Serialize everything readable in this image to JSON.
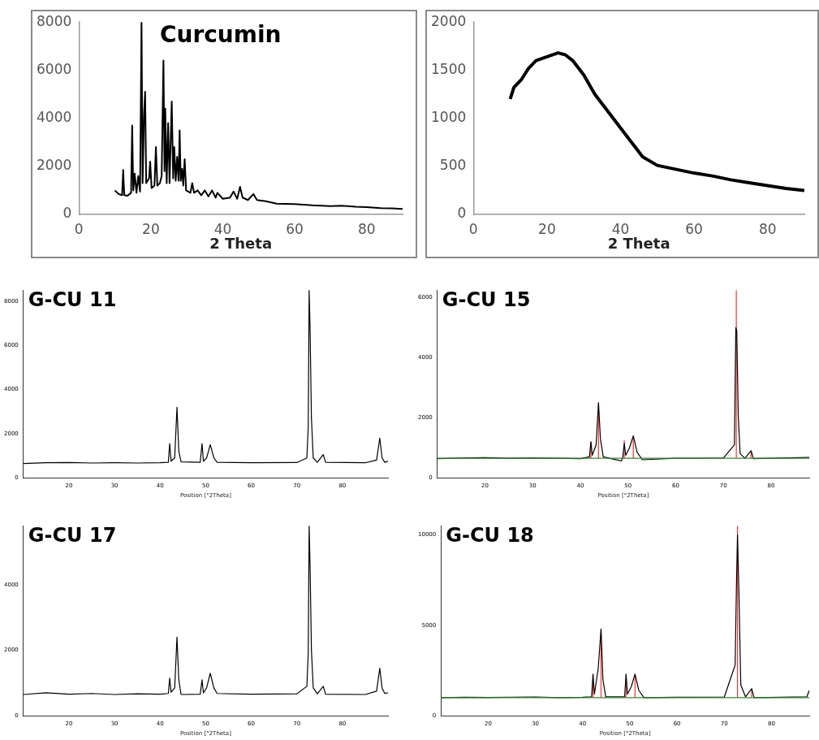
{
  "chart_data": [
    {
      "type": "line",
      "title": "Curcumin",
      "xlabel": "2 Theta",
      "xlim": [
        0,
        90
      ],
      "xticks": [
        0,
        20,
        40,
        60,
        80
      ],
      "ylim": [
        0,
        8000
      ],
      "yticks": [
        0,
        2000,
        4000,
        6000,
        8000
      ],
      "grid": false,
      "legend": false,
      "marker": "none",
      "series": [
        {
          "color": "#000000",
          "x": [
            10,
            11,
            12,
            12.3,
            12.6,
            13.5,
            14.5,
            14.8,
            15.1,
            15.5,
            16,
            16.5,
            17,
            17.4,
            17.7,
            18.1,
            18.4,
            18.7,
            19.5,
            19.8,
            20.2,
            21,
            21.4,
            21.8,
            22.5,
            23,
            23.5,
            23.8,
            24,
            24.4,
            24.8,
            25.2,
            25.8,
            26.2,
            26.5,
            26.9,
            27.3,
            27.7,
            28,
            28.3,
            28.7,
            29,
            29.4,
            29.8,
            31,
            31.5,
            32,
            33,
            34,
            35,
            36,
            37,
            38,
            38.5,
            40,
            42,
            43,
            44,
            44.8,
            45.5,
            47,
            48.5,
            49.5,
            52,
            55,
            60,
            65,
            70,
            73,
            77,
            80,
            84,
            87,
            90
          ],
          "values": [
            1000,
            850,
            800,
            1850,
            800,
            780,
            900,
            3700,
            1000,
            1700,
            900,
            1600,
            950,
            8000,
            1300,
            4200,
            5100,
            1300,
            1500,
            2200,
            1100,
            1200,
            2800,
            1200,
            1300,
            1600,
            6400,
            1800,
            4400,
            1300,
            3800,
            1300,
            4700,
            1500,
            2800,
            1400,
            2400,
            1400,
            3500,
            1400,
            1900,
            1200,
            2300,
            1000,
            900,
            1300,
            900,
            1000,
            800,
            1000,
            750,
            1000,
            700,
            900,
            650,
            700,
            950,
            650,
            1150,
            700,
            600,
            850,
            600,
            550,
            450,
            430,
            380,
            350,
            360,
            320,
            300,
            260,
            250,
            230
          ]
        }
      ]
    },
    {
      "type": "line",
      "xlabel": "2 Theta",
      "xlim": [
        0,
        90
      ],
      "xticks": [
        0,
        20,
        40,
        60,
        80
      ],
      "ylim": [
        0,
        2000
      ],
      "yticks": [
        0,
        500,
        1000,
        1500,
        2000
      ],
      "grid": false,
      "legend": false,
      "marker": "none",
      "series": [
        {
          "color": "#000000",
          "x": [
            10,
            11,
            13,
            15,
            17,
            20,
            23,
            25,
            27,
            30,
            33,
            36,
            40,
            43,
            46,
            50,
            55,
            60,
            65,
            70,
            75,
            80,
            85,
            90
          ],
          "values": [
            1200,
            1320,
            1400,
            1520,
            1600,
            1640,
            1680,
            1660,
            1600,
            1450,
            1250,
            1100,
            900,
            750,
            600,
            510,
            470,
            430,
            400,
            360,
            330,
            300,
            270,
            250
          ]
        }
      ]
    },
    {
      "type": "line",
      "title": "G-CU 11",
      "xlabel": "Position [°2Theta]",
      "xlim": [
        10,
        90
      ],
      "xticks": [
        20,
        30,
        40,
        50,
        60,
        70,
        80
      ],
      "ylim": [
        0,
        8500
      ],
      "yticks": [
        0,
        2000,
        4000,
        6000,
        8000
      ],
      "grid": false,
      "legend": false,
      "marker": "none",
      "series": [
        {
          "color": "#000000",
          "x": [
            10,
            15,
            20,
            25,
            30,
            35,
            40,
            41.8,
            42.1,
            42.4,
            43.2,
            43.7,
            44.1,
            44.6,
            48.8,
            49.2,
            49.5,
            50.2,
            51,
            51.8,
            52.5,
            60,
            70,
            72.2,
            72.5,
            72.7,
            72.9,
            73.2,
            73.6,
            74.5,
            75.8,
            76.3,
            85,
            87.5,
            88.2,
            88.7,
            89.3,
            90
          ],
          "values": [
            650,
            680,
            690,
            670,
            680,
            670,
            680,
            700,
            1550,
            750,
            900,
            3200,
            1200,
            720,
            700,
            1550,
            750,
            900,
            1500,
            900,
            700,
            680,
            690,
            900,
            2300,
            8500,
            6800,
            2700,
            900,
            700,
            1050,
            700,
            680,
            800,
            1800,
            900,
            700,
            750
          ]
        }
      ]
    },
    {
      "type": "line",
      "title": "G-CU 15",
      "xlabel": "Position [°2Theta]",
      "xlim": [
        10,
        88
      ],
      "xticks": [
        20,
        30,
        40,
        50,
        60,
        70,
        80
      ],
      "ylim": [
        0,
        6250
      ],
      "yticks": [
        0,
        2000,
        4000,
        6000
      ],
      "grid": false,
      "legend": false,
      "marker": "none",
      "series": [
        {
          "color": "#2e8b2e",
          "x": [
            10,
            88
          ],
          "values": [
            650,
            650
          ]
        },
        {
          "color": "#000000",
          "x": [
            10,
            15,
            20,
            25,
            30,
            35,
            40,
            41.9,
            42.2,
            42.5,
            43.3,
            43.8,
            44.2,
            44.8,
            48.6,
            48.9,
            49.2,
            49.5,
            50.3,
            51.1,
            51.9,
            53,
            60,
            70,
            72.3,
            72.6,
            72.8,
            73.1,
            73.5,
            74.5,
            75.8,
            76.3,
            82,
            88
          ],
          "values": [
            640,
            660,
            670,
            650,
            660,
            650,
            640,
            700,
            1200,
            750,
            1100,
            2500,
            1300,
            700,
            560,
            700,
            1150,
            750,
            1000,
            1400,
            850,
            600,
            650,
            660,
            1100,
            5000,
            4900,
            2100,
            800,
            650,
            900,
            640,
            660,
            680
          ]
        },
        {
          "color": "#ff3030",
          "x": [
            42.2,
            42.2,
            null,
            43.8,
            43.8,
            null,
            49.2,
            49.2,
            null,
            51.1,
            51.1,
            null,
            72.7,
            72.7,
            null,
            75.8,
            75.8
          ],
          "values": [
            650,
            1200,
            null,
            650,
            2500,
            null,
            650,
            1250,
            null,
            650,
            1350,
            null,
            650,
            6250,
            null,
            650,
            900
          ]
        }
      ]
    },
    {
      "type": "line",
      "title": "G-CU 17",
      "xlabel": "Position [°2Theta]",
      "xlim": [
        10,
        90
      ],
      "xticks": [
        20,
        30,
        40,
        50,
        60,
        70,
        80
      ],
      "ylim": [
        0,
        5800
      ],
      "yticks": [
        0,
        2000,
        4000
      ],
      "grid": false,
      "legend": false,
      "marker": "none",
      "series": [
        {
          "color": "#000000",
          "x": [
            10,
            15,
            20,
            25,
            30,
            35,
            40,
            41.8,
            42.1,
            42.4,
            43.2,
            43.7,
            44.1,
            44.6,
            48.8,
            49.2,
            49.5,
            50.2,
            51,
            51.8,
            52.5,
            60,
            70,
            72.2,
            72.5,
            72.7,
            72.9,
            73.2,
            73.6,
            74.5,
            75.8,
            76.3,
            85,
            87.5,
            88.2,
            88.7,
            89.3,
            90
          ],
          "values": [
            650,
            700,
            660,
            680,
            650,
            670,
            660,
            680,
            1150,
            720,
            850,
            2400,
            1100,
            650,
            660,
            1100,
            700,
            850,
            1300,
            850,
            680,
            660,
            670,
            900,
            1900,
            5800,
            4600,
            2000,
            850,
            670,
            900,
            660,
            650,
            750,
            1450,
            850,
            680,
            700
          ]
        }
      ]
    },
    {
      "type": "line",
      "title": "G-CU 18",
      "xlabel": "Position [°2Theta]",
      "xlim": [
        10,
        88
      ],
      "xticks": [
        20,
        30,
        40,
        50,
        60,
        70,
        80
      ],
      "ylim": [
        0,
        10500
      ],
      "yticks": [
        0,
        5000,
        10000
      ],
      "grid": false,
      "legend": false,
      "marker": "none",
      "series": [
        {
          "color": "#2e8b2e",
          "x": [
            10,
            88
          ],
          "values": [
            1000,
            1000
          ]
        },
        {
          "color": "#000000",
          "x": [
            10,
            15,
            20,
            25,
            30,
            35,
            40,
            41.9,
            42.2,
            42.5,
            43.3,
            43.9,
            44.3,
            44.9,
            48.9,
            49.2,
            49.5,
            50.3,
            51.1,
            51.9,
            53,
            60,
            70,
            72.3,
            72.6,
            72.8,
            73.1,
            73.5,
            74.5,
            75.8,
            76.3,
            82,
            87.5,
            88
          ],
          "values": [
            1000,
            1020,
            1010,
            1030,
            1040,
            1000,
            1020,
            1050,
            2300,
            1200,
            2600,
            4800,
            2000,
            1050,
            1050,
            2300,
            1200,
            1600,
            2300,
            1400,
            1000,
            1020,
            1030,
            2800,
            7500,
            10000,
            6900,
            1700,
            1050,
            1500,
            1000,
            1020,
            1050,
            1400
          ]
        },
        {
          "color": "#ff3030",
          "x": [
            42.2,
            42.2,
            null,
            43.9,
            43.9,
            null,
            49.2,
            49.2,
            null,
            51.1,
            51.1,
            null,
            72.8,
            72.8,
            null,
            75.8,
            75.8
          ],
          "values": [
            1000,
            2300,
            null,
            1000,
            4700,
            null,
            1000,
            2300,
            null,
            1000,
            2300,
            null,
            1000,
            10500,
            null,
            1000,
            1500
          ]
        }
      ]
    }
  ]
}
